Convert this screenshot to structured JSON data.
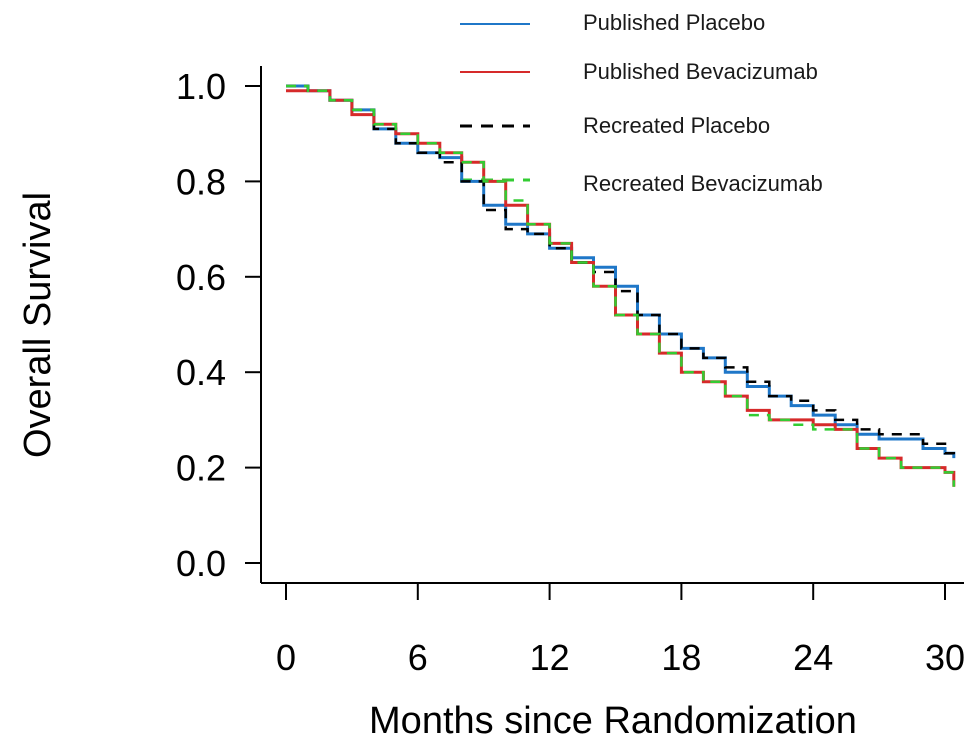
{
  "chart_data": {
    "type": "line",
    "title": "",
    "xlabel": "Months since Randomization",
    "ylabel": "Overall Survival",
    "xlim": [
      0,
      30
    ],
    "ylim": [
      0,
      1
    ],
    "x_ticks": [
      0,
      6,
      12,
      18,
      24,
      30
    ],
    "x_tick_labels": [
      "0",
      "6",
      "12",
      "18",
      "24",
      "30"
    ],
    "y_ticks": [
      0,
      0.2,
      0.4,
      0.6,
      0.8,
      1
    ],
    "y_tick_labels": [
      "0.0",
      "0.2",
      "0.4",
      "0.6",
      "0.8",
      "1.0"
    ],
    "grid": false,
    "legend_position": "top-right",
    "series": [
      {
        "name": "Published Placebo",
        "color": "#1f77c8",
        "dash": "solid",
        "x": [
          0,
          1.0,
          2.0,
          3.0,
          4.0,
          5.0,
          6.0,
          7.0,
          8.0,
          9.0,
          10.0,
          11.0,
          12.0,
          13.0,
          14.0,
          15.0,
          16.0,
          17.0,
          18.0,
          19.0,
          20.0,
          21.0,
          22.0,
          23.0,
          24.0,
          25.0,
          26.0,
          27.0,
          28.0,
          29.0,
          30.0,
          30.4
        ],
        "y": [
          1.0,
          0.99,
          0.97,
          0.95,
          0.91,
          0.88,
          0.86,
          0.85,
          0.8,
          0.75,
          0.71,
          0.69,
          0.66,
          0.64,
          0.62,
          0.58,
          0.52,
          0.48,
          0.45,
          0.43,
          0.4,
          0.37,
          0.35,
          0.33,
          0.31,
          0.29,
          0.27,
          0.26,
          0.26,
          0.24,
          0.23,
          0.22
        ]
      },
      {
        "name": "Published Bevacizumab",
        "color": "#d62a2a",
        "dash": "solid",
        "x": [
          0,
          1.0,
          2.0,
          3.0,
          4.0,
          5.0,
          6.0,
          7.0,
          8.0,
          9.0,
          10.0,
          11.0,
          12.0,
          13.0,
          14.0,
          15.0,
          16.0,
          17.0,
          18.0,
          19.0,
          20.0,
          21.0,
          22.0,
          23.0,
          24.0,
          25.0,
          26.0,
          27.0,
          28.0,
          29.0,
          30.0,
          30.4
        ],
        "y": [
          0.99,
          0.99,
          0.97,
          0.94,
          0.92,
          0.9,
          0.88,
          0.86,
          0.84,
          0.8,
          0.75,
          0.71,
          0.67,
          0.63,
          0.58,
          0.52,
          0.48,
          0.44,
          0.4,
          0.38,
          0.35,
          0.32,
          0.3,
          0.3,
          0.29,
          0.28,
          0.24,
          0.22,
          0.2,
          0.2,
          0.19,
          0.16
        ]
      },
      {
        "name": "Recreated Placebo",
        "color": "#000000",
        "dash": "dashed",
        "x": [
          0,
          1.0,
          2.0,
          3.0,
          4.0,
          5.0,
          6.0,
          7.0,
          8.0,
          9.0,
          10.0,
          11.0,
          12.0,
          13.0,
          14.0,
          15.0,
          16.0,
          17.0,
          18.0,
          19.0,
          20.0,
          21.0,
          22.0,
          23.0,
          24.0,
          25.0,
          26.0,
          27.0,
          28.0,
          29.0,
          30.0,
          30.4
        ],
        "y": [
          1.0,
          0.99,
          0.97,
          0.95,
          0.91,
          0.88,
          0.86,
          0.84,
          0.8,
          0.74,
          0.7,
          0.69,
          0.66,
          0.63,
          0.61,
          0.57,
          0.52,
          0.48,
          0.45,
          0.43,
          0.41,
          0.38,
          0.35,
          0.34,
          0.32,
          0.3,
          0.28,
          0.27,
          0.27,
          0.25,
          0.23,
          0.22
        ]
      },
      {
        "name": "Recreated Bevacizumab",
        "color": "#33cc33",
        "dash": "dashed",
        "x": [
          0,
          1.0,
          2.0,
          3.0,
          4.0,
          5.0,
          6.0,
          7.0,
          8.0,
          9.0,
          10.0,
          11.0,
          12.0,
          13.0,
          14.0,
          15.0,
          16.0,
          17.0,
          18.0,
          19.0,
          20.0,
          21.0,
          22.0,
          23.0,
          24.0,
          25.0,
          26.0,
          27.0,
          28.0,
          29.0,
          30.0,
          30.4
        ],
        "y": [
          1.0,
          0.99,
          0.97,
          0.95,
          0.92,
          0.9,
          0.88,
          0.86,
          0.84,
          0.8,
          0.76,
          0.71,
          0.67,
          0.63,
          0.58,
          0.52,
          0.48,
          0.44,
          0.4,
          0.38,
          0.35,
          0.31,
          0.3,
          0.29,
          0.28,
          0.28,
          0.24,
          0.22,
          0.2,
          0.2,
          0.19,
          0.16
        ]
      }
    ]
  }
}
